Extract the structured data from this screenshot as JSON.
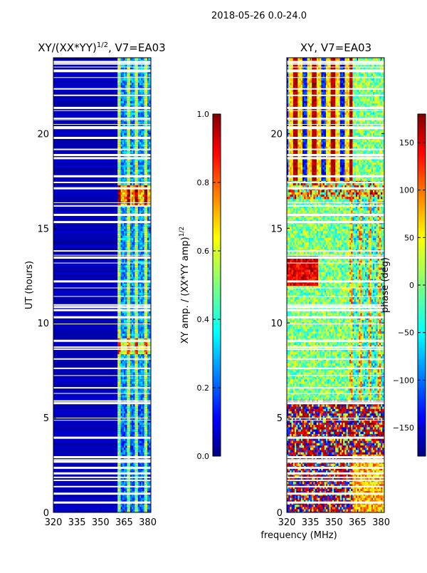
{
  "suptitle": "2018-05-26 0.0-24.0",
  "chart_data": [
    {
      "type": "heatmap",
      "title": "XY/(XX*YY)",
      "title_exponent": "1/2",
      "title_suffix": ", V7=EA03",
      "xlabel": "",
      "ylabel": "UT (hours)",
      "xlim": [
        320,
        382
      ],
      "ylim": [
        0,
        24
      ],
      "xticks": [
        "320",
        "335",
        "350",
        "365",
        "380"
      ],
      "yticks": [
        "0",
        "5",
        "10",
        "15",
        "20"
      ],
      "colorbar": {
        "label": "XY amp. / (XX*YY amp)",
        "label_exponent": "1/2",
        "range": [
          0.0,
          1.0
        ],
        "ticks": [
          "0.0",
          "0.2",
          "0.4",
          "0.6",
          "0.8",
          "1.0"
        ],
        "colormap": "jet"
      },
      "description": "Normalized cross-correlation amplitude vs frequency and UT; background ~0.05, elevated band at 360-382 MHz (~0.4-0.6) peaking ~0.8 near 16.5-17 h and 8.5-9 h"
    },
    {
      "type": "heatmap",
      "title": "XY, V7=EA03",
      "xlabel": "frequency (MHz)",
      "ylabel": "",
      "xlim": [
        320,
        382
      ],
      "ylim": [
        0,
        24
      ],
      "xticks": [
        "320",
        "335",
        "350",
        "365",
        "380"
      ],
      "yticks": [
        "0",
        "5",
        "10",
        "15",
        "20"
      ],
      "colorbar": {
        "label": "phase (deg)",
        "range": [
          -180,
          180
        ],
        "ticks": [
          "150",
          "100",
          "50",
          "0",
          "−50",
          "−100",
          "−150"
        ],
        "colormap": "jet"
      },
      "description": "XY phase vs frequency and UT; noisy phase below 6 h, smoother near 0 deg from 7-16 h, banded structure 17-24 h"
    }
  ],
  "colors": {
    "jet": [
      "#00007f",
      "#0000ff",
      "#007fff",
      "#00ffff",
      "#7fff7f",
      "#ffff00",
      "#ff7f00",
      "#ff0000",
      "#7f0000"
    ],
    "gap": "#ffffff",
    "axis": "#000000"
  }
}
